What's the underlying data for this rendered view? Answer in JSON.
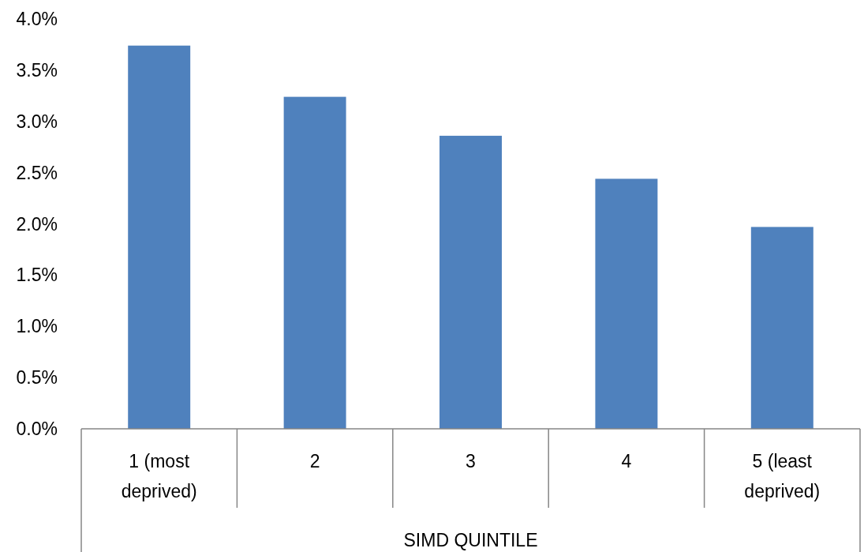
{
  "chart_data": {
    "type": "bar",
    "xlabel": "SIMD QUINTILE",
    "categories": [
      "1 (most deprived)",
      "2",
      "3",
      "4",
      "5 (least deprived)"
    ],
    "values": [
      3.74,
      3.24,
      2.86,
      2.44,
      1.97
    ],
    "color": "#4f81bd",
    "ylim": [
      0,
      4
    ],
    "yticks": [
      {
        "value": 0,
        "label": "0.0%"
      },
      {
        "value": 0.5,
        "label": "0.5%"
      },
      {
        "value": 1,
        "label": "1.0%"
      },
      {
        "value": 1.5,
        "label": "1.5%"
      },
      {
        "value": 2,
        "label": "2.0%"
      },
      {
        "value": 2.5,
        "label": "2.5%"
      },
      {
        "value": 3,
        "label": "3.0%"
      },
      {
        "value": 3.5,
        "label": "3.5%"
      },
      {
        "value": 4,
        "label": "4.0%"
      }
    ],
    "grid": false
  }
}
